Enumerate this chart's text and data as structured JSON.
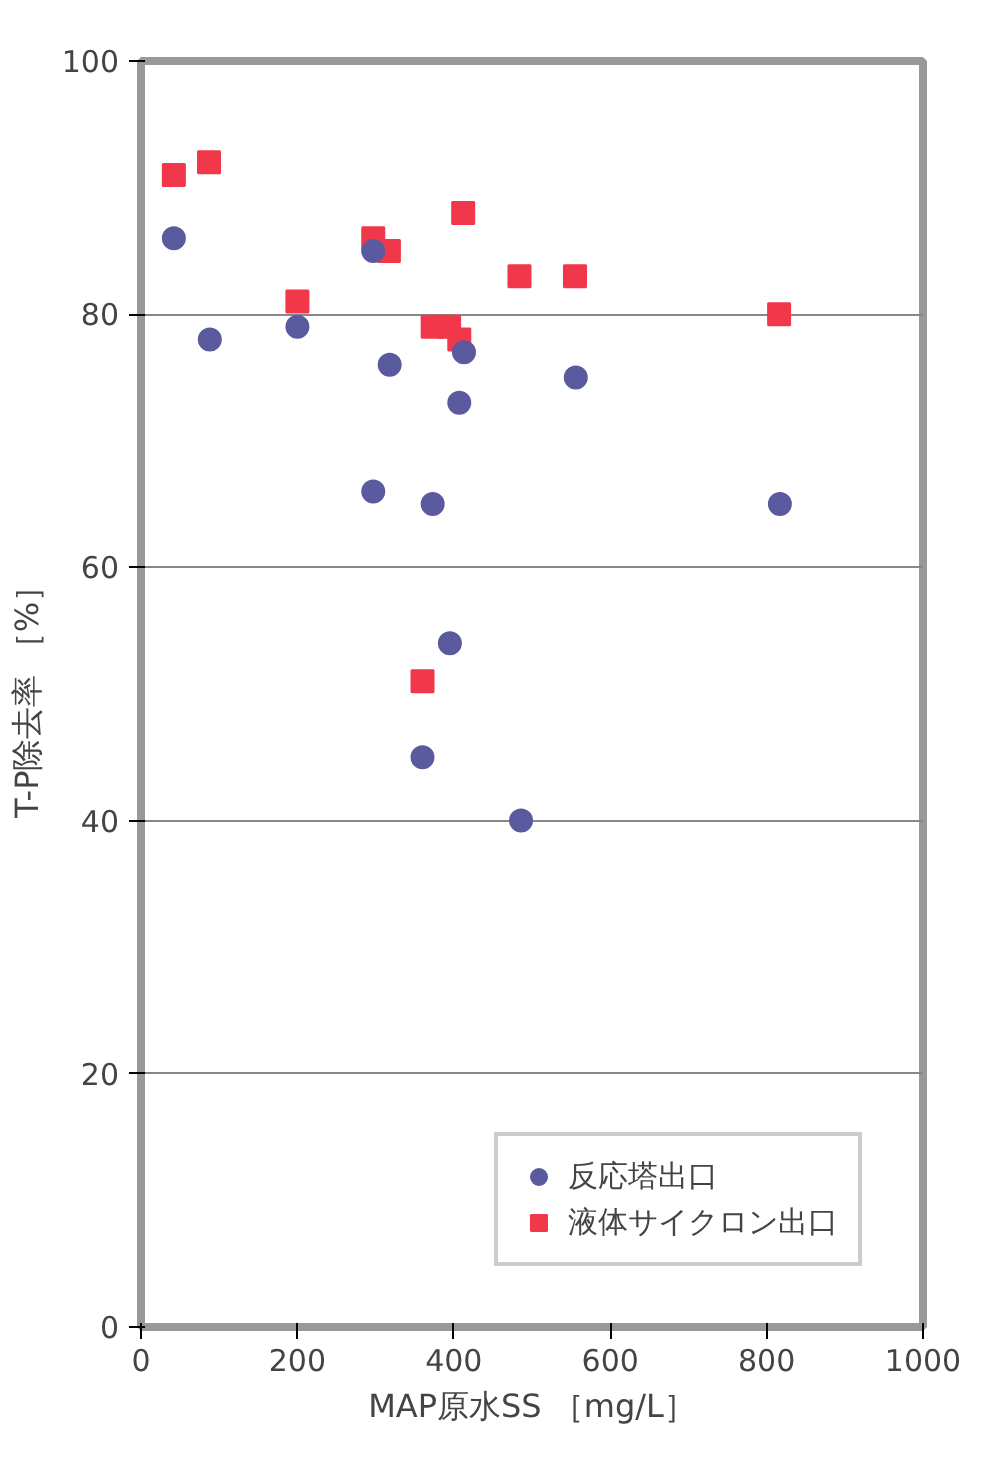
{
  "chart_data": {
    "type": "scatter",
    "xlabel": "MAP原水SS ［mg/L］",
    "ylabel": "T-P除去率 ［%］",
    "xlim": [
      0,
      1000
    ],
    "xticks": [
      0,
      200,
      400,
      600,
      800,
      1000
    ],
    "ylim": [
      0,
      100
    ],
    "yticks": [
      0,
      20,
      40,
      60,
      80,
      100
    ],
    "grid": "y",
    "legend": "bottom right",
    "series": [
      {
        "name": "反応塔出口",
        "color": "#5a5a9e",
        "marker": "circle",
        "x": [
          817,
          556,
          486,
          413,
          407,
          395,
          373,
          360,
          318,
          297,
          297,
          200,
          88,
          42
        ],
        "values": [
          65,
          75,
          40,
          77,
          73,
          54,
          65,
          45,
          76,
          66,
          85,
          79,
          78,
          86
        ]
      },
      {
        "name": "液体サイクロン出口",
        "color": "#f0384a",
        "marker": "square",
        "x": [
          816,
          555,
          484,
          412,
          407,
          394,
          373,
          360,
          317,
          297,
          200,
          87,
          42
        ],
        "values": [
          80,
          83,
          83,
          88,
          78,
          79,
          79,
          51,
          85,
          86,
          81,
          92,
          91
        ]
      }
    ]
  }
}
